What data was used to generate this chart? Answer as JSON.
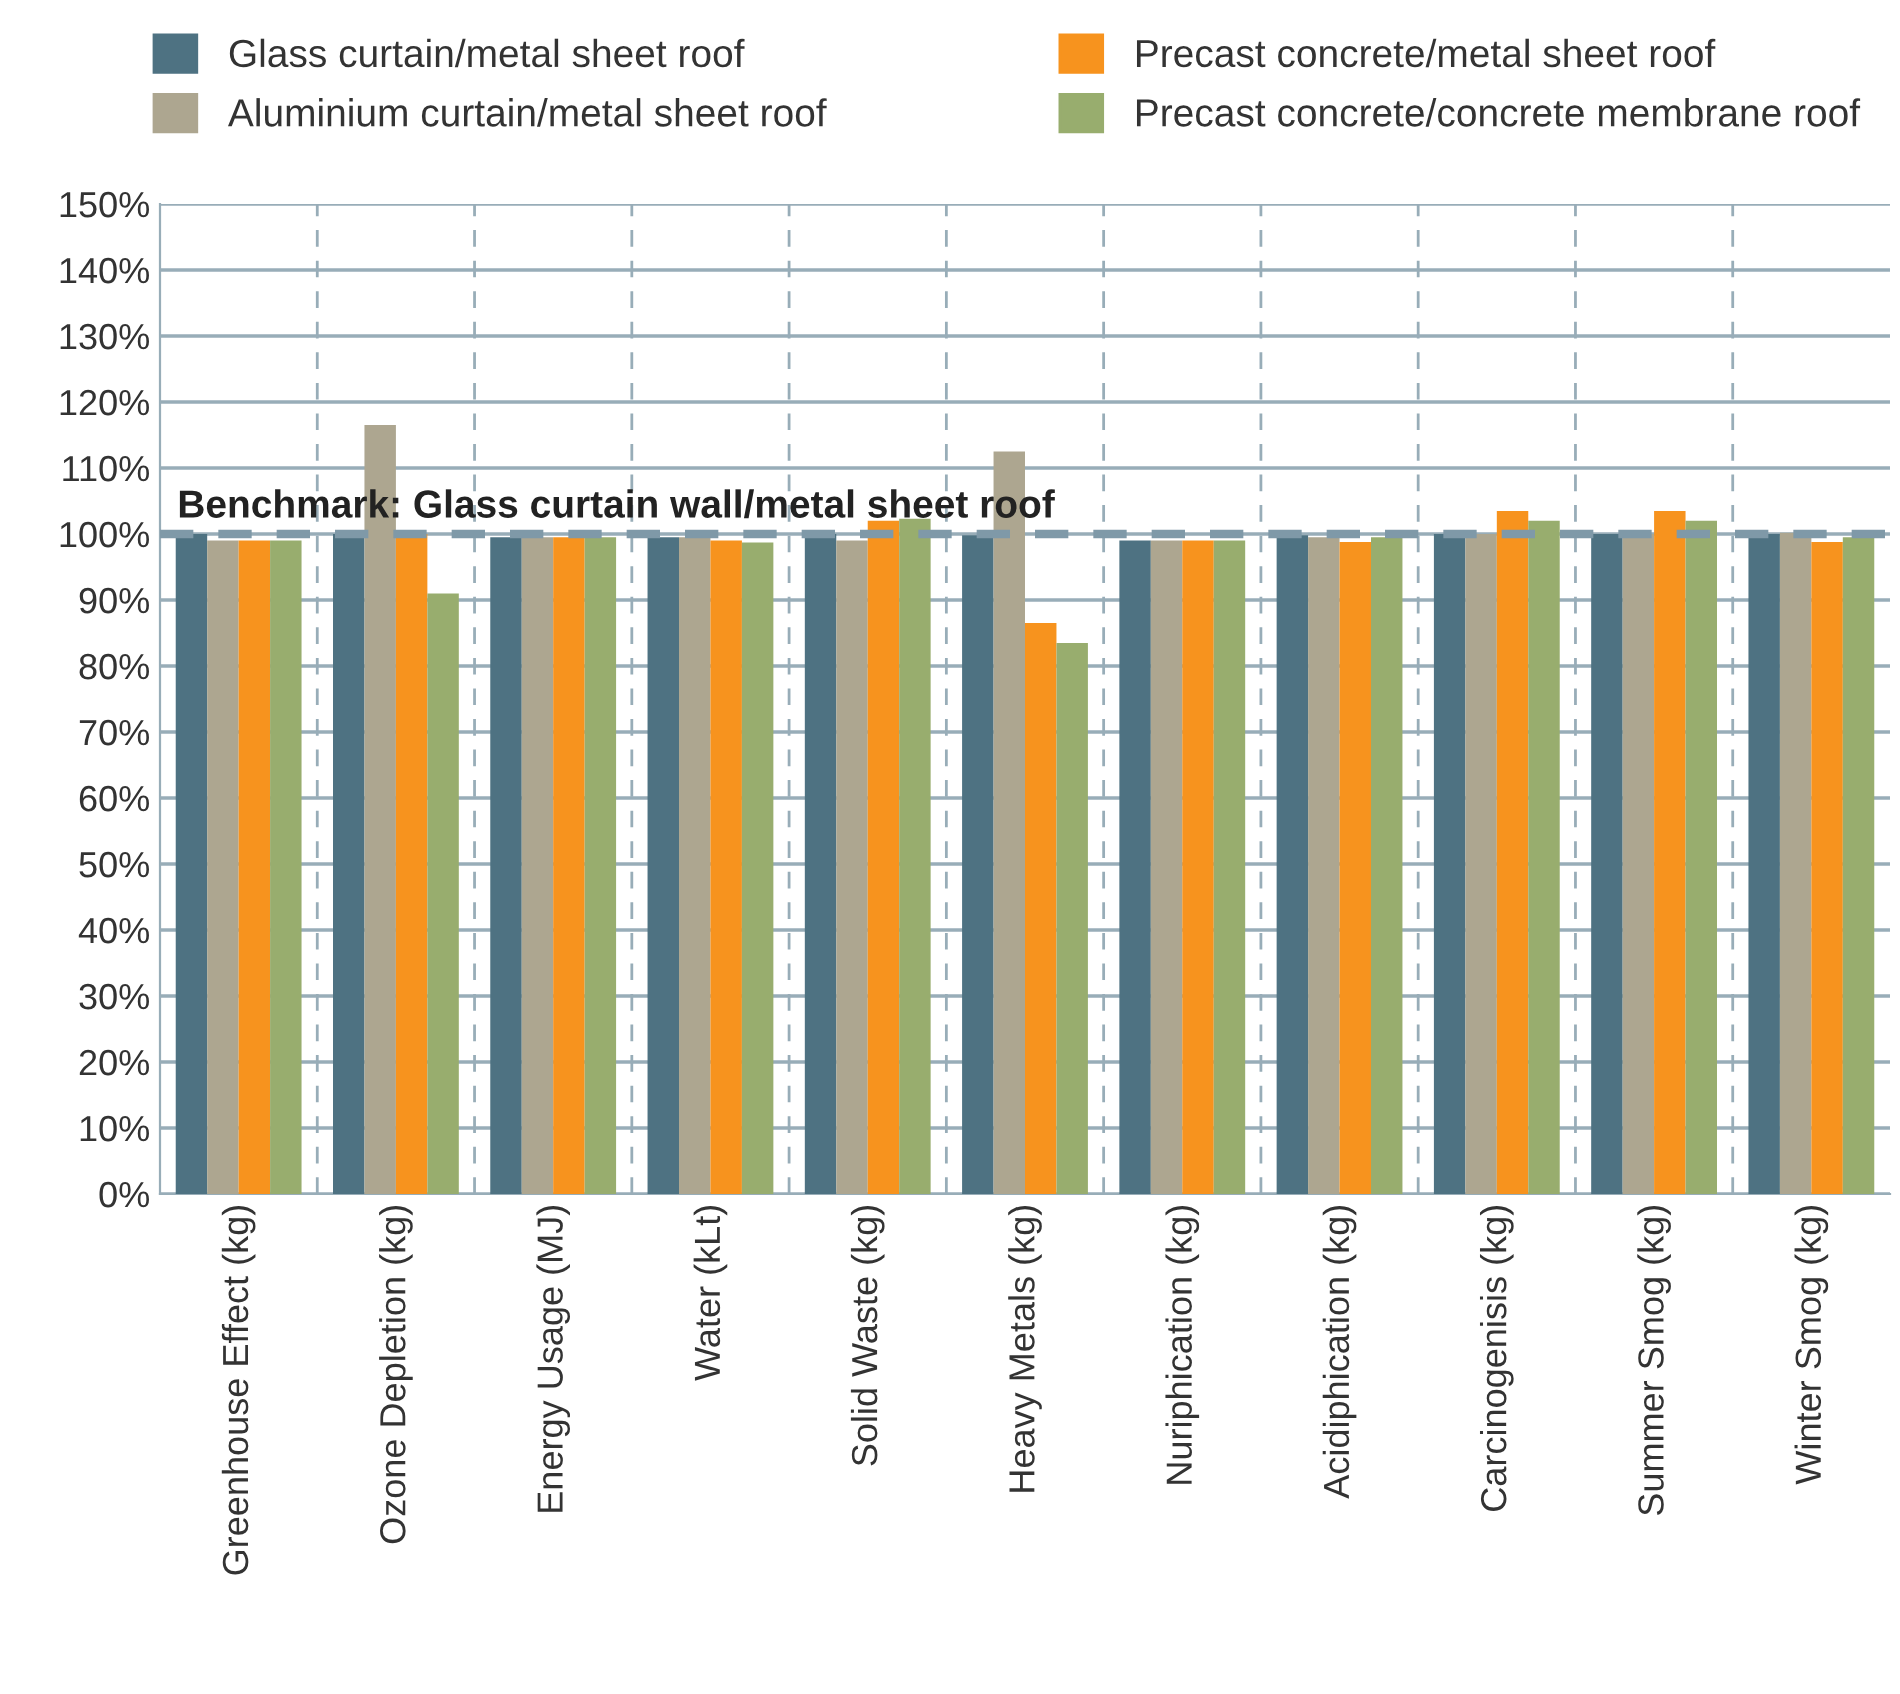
{
  "chart_data": {
    "type": "bar",
    "categories": [
      "Greenhouse Effect (kg)",
      "Ozone Depletion (kg)",
      "Energy Usage (MJ)",
      "Water (kLt)",
      "Solid Waste (kg)",
      "Heavy Metals (kg)",
      "Nuriphication (kg)",
      "Acidiphication (kg)",
      "Carcinogenisis (kg)",
      "Summer Smog (kg)",
      "Winter Smog (kg)"
    ],
    "series": [
      {
        "name": "Glass curtain/metal sheet roof",
        "color": "#4e7282",
        "values": [
          100,
          100,
          99.5,
          99.5,
          100,
          99.8,
          99,
          99.8,
          100,
          100,
          100
        ]
      },
      {
        "name": "Aluminium curtain/metal sheet roof",
        "color": "#ada690",
        "values": [
          99,
          116.5,
          99.5,
          99.5,
          99,
          112.5,
          99,
          99.5,
          100,
          100,
          100.2
        ]
      },
      {
        "name": "Precast concrete/metal sheet roof",
        "color": "#f7931e",
        "values": [
          99,
          100,
          99.5,
          99,
          102,
          86.5,
          99,
          98.8,
          103.5,
          103.5,
          98.8
        ]
      },
      {
        "name": "Precast concrete/concrete membrane roof",
        "color": "#98ad6e",
        "values": [
          99,
          91,
          99.5,
          98.7,
          102.3,
          83.5,
          99,
          99.5,
          102,
          102,
          99.5
        ]
      }
    ],
    "ylim": [
      0,
      150
    ],
    "yticks": [
      {
        "value": 0,
        "label": "0%"
      },
      {
        "value": 10,
        "label": "10%"
      },
      {
        "value": 20,
        "label": "20%"
      },
      {
        "value": 30,
        "label": "30%"
      },
      {
        "value": 40,
        "label": "40%"
      },
      {
        "value": 50,
        "label": "50%"
      },
      {
        "value": 60,
        "label": "60%"
      },
      {
        "value": 70,
        "label": "70%"
      },
      {
        "value": 80,
        "label": "80%"
      },
      {
        "value": 90,
        "label": "90%"
      },
      {
        "value": 100,
        "label": "100%"
      },
      {
        "value": 110,
        "label": "110%"
      },
      {
        "value": 120,
        "label": "120%"
      },
      {
        "value": 130,
        "label": "130%"
      },
      {
        "value": 140,
        "label": "140%"
      },
      {
        "value": 150,
        "label": "150%"
      }
    ],
    "ref_lines": [
      {
        "axis": "y",
        "value": 100,
        "label": "Benchmark: Glass curtain wall/metal sheet roof",
        "color": "#7f99a8",
        "line_style": "dashed"
      }
    ],
    "grid": true,
    "legend": "top"
  }
}
